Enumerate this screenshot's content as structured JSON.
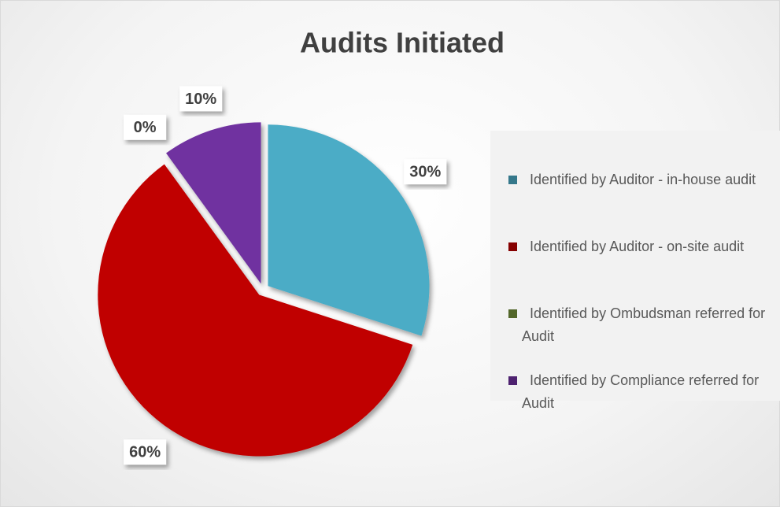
{
  "chart_data": {
    "type": "pie",
    "title": "Audits Initiated",
    "categories": [
      "Identified by Auditor - in-house audit",
      "Identified by Auditor - on-site audit",
      "Identified by Ombudsman referred for Audit",
      "Identified by Compliance referred for Audit"
    ],
    "values": [
      30,
      60,
      0,
      10
    ],
    "value_labels": [
      "30%",
      "60%",
      "0%",
      "10%"
    ],
    "colors": [
      "#4bacc6",
      "#c00000",
      "#77933c",
      "#7030a0"
    ],
    "legend": "right"
  }
}
